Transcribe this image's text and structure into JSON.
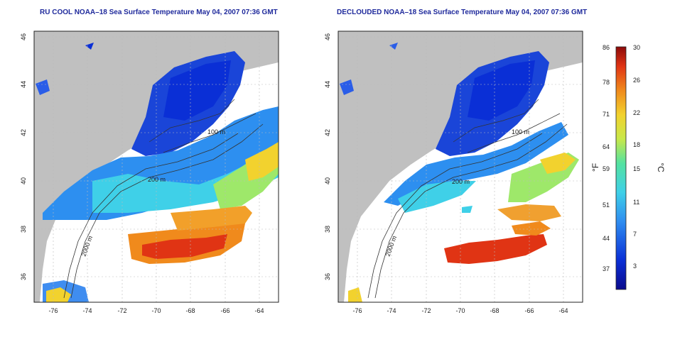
{
  "panels": [
    {
      "title": "RU COOL NOAA–18 Sea Surface Temperature May 04, 2007 07:36 GMT"
    },
    {
      "title": "DECLOUDED NOAA–18 Sea Surface Temperature May 04, 2007 07:36 GMT"
    }
  ],
  "axes": {
    "x_ticks": [
      "-76",
      "-74",
      "-72",
      "-70",
      "-68",
      "-66",
      "-64"
    ],
    "y_ticks": [
      "36",
      "38",
      "40",
      "42",
      "44",
      "46"
    ]
  },
  "contours": [
    "100 m",
    "200 m",
    "2000 m"
  ],
  "colorbar": {
    "f_label": "°F",
    "c_label": "°C",
    "f_ticks": [
      "86",
      "78",
      "71",
      "64",
      "59",
      "51",
      "44",
      "37"
    ],
    "c_ticks": [
      "30",
      "26",
      "22",
      "18",
      "15",
      "11",
      "7",
      "3"
    ]
  },
  "colors": {
    "land": "#c0c0c0",
    "title": "#1f2a9c",
    "cold": "#0a2fd6",
    "warm": "#e83b10"
  }
}
